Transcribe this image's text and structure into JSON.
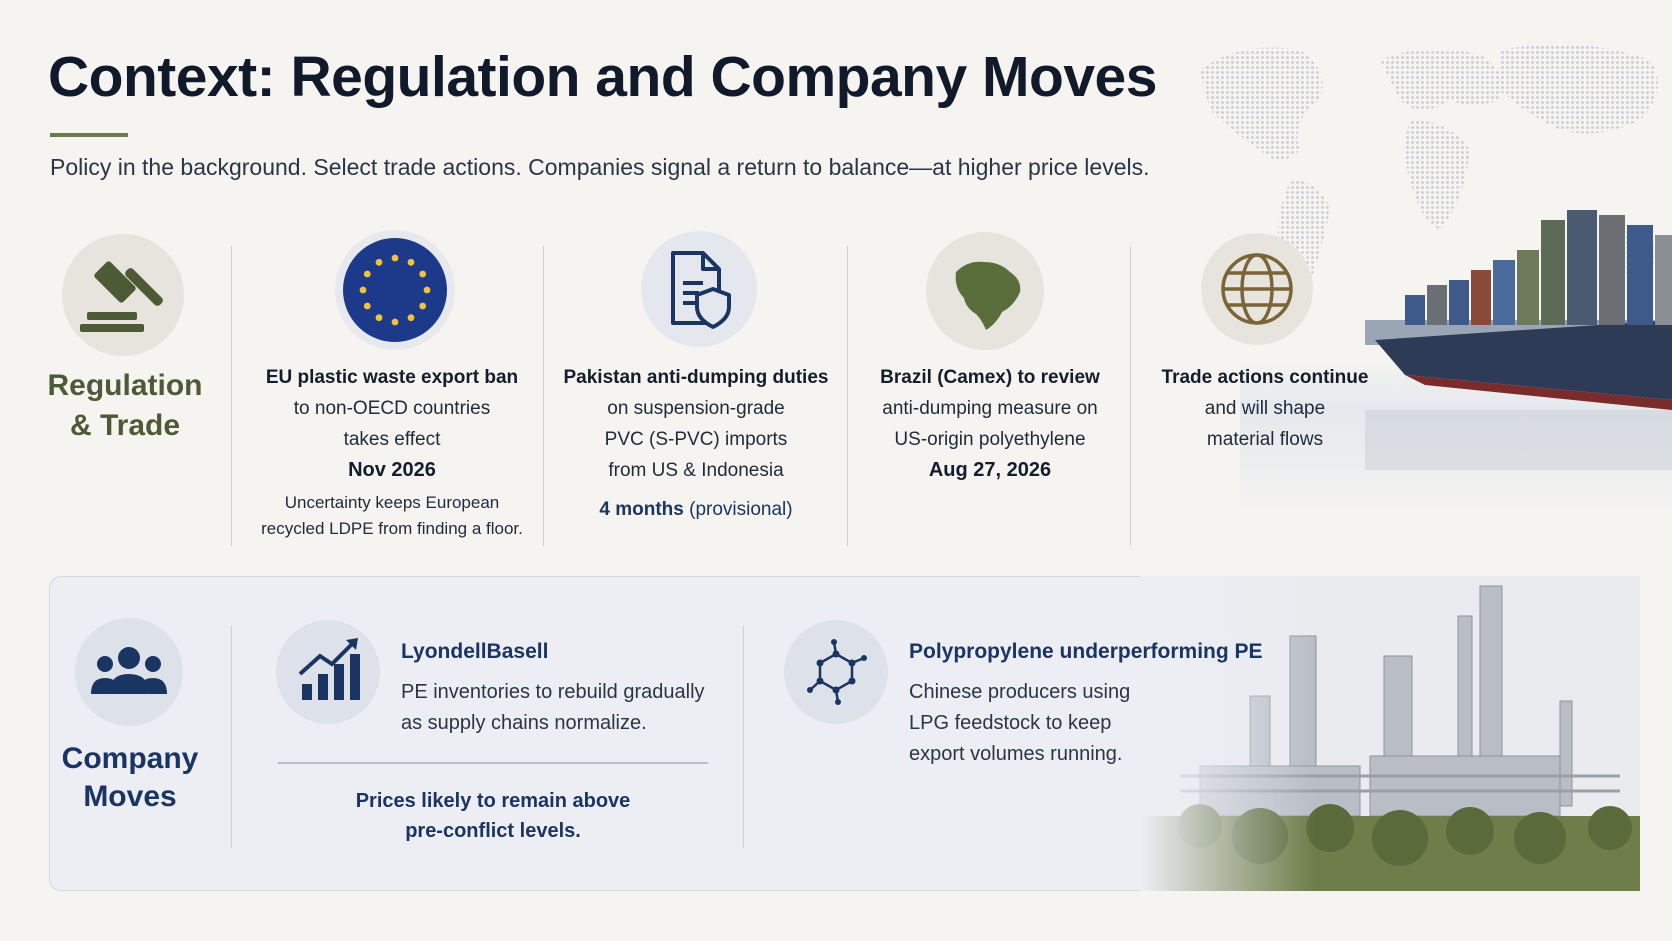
{
  "title": "Context: Regulation and Company Moves",
  "subtitle": "Policy in the background. Select trade actions. Companies signal a return to balance—at higher price levels.",
  "regulation": {
    "label_line1": "Regulation",
    "label_line2": "& Trade",
    "icon": "gavel-icon",
    "items": [
      {
        "icon": "eu-flag-icon",
        "heading": "EU plastic waste export ban",
        "line1": "to non-OECD countries",
        "line2": "takes effect",
        "date": "Nov 2026",
        "note1": "Uncertainty keeps European",
        "note2": "recycled LDPE from finding a floor."
      },
      {
        "icon": "document-shield-icon",
        "heading": "Pakistan anti-dumping duties",
        "line1": "on suspension-grade",
        "line2": "PVC (S-PVC) imports",
        "line3": "from US & Indonesia",
        "duration": "4 months",
        "duration_note": "(provisional)"
      },
      {
        "icon": "brazil-map-icon",
        "heading": "Brazil (Camex) to review",
        "line1": "anti-dumping measure on",
        "line2": "US-origin polyethylene",
        "date": "Aug 27, 2026"
      },
      {
        "icon": "globe-icon",
        "heading": "Trade actions continue",
        "line1": "and will shape",
        "line2": "material flows"
      }
    ]
  },
  "company": {
    "label_line1": "Company",
    "label_line2": "Moves",
    "icon": "people-group-icon",
    "lyondell": {
      "icon": "bar-chart-up-icon",
      "heading": "LyondellBasell",
      "line1": "PE inventories to rebuild gradually",
      "line2": "as supply chains normalize.",
      "emph1": "Prices likely to remain above",
      "emph2": "pre-conflict levels."
    },
    "pp": {
      "icon": "molecule-icon",
      "heading": "Polypropylene underperforming PE",
      "line1": "Chinese producers using",
      "line2": "LPG feedstock to keep",
      "line3": "export volumes running."
    }
  },
  "colors": {
    "olive": "#4c5a35",
    "navy": "#1b3563",
    "eu_blue": "#1d3a8a",
    "brazil_green": "#5a6e3b",
    "globe_brown": "#7a6538"
  }
}
